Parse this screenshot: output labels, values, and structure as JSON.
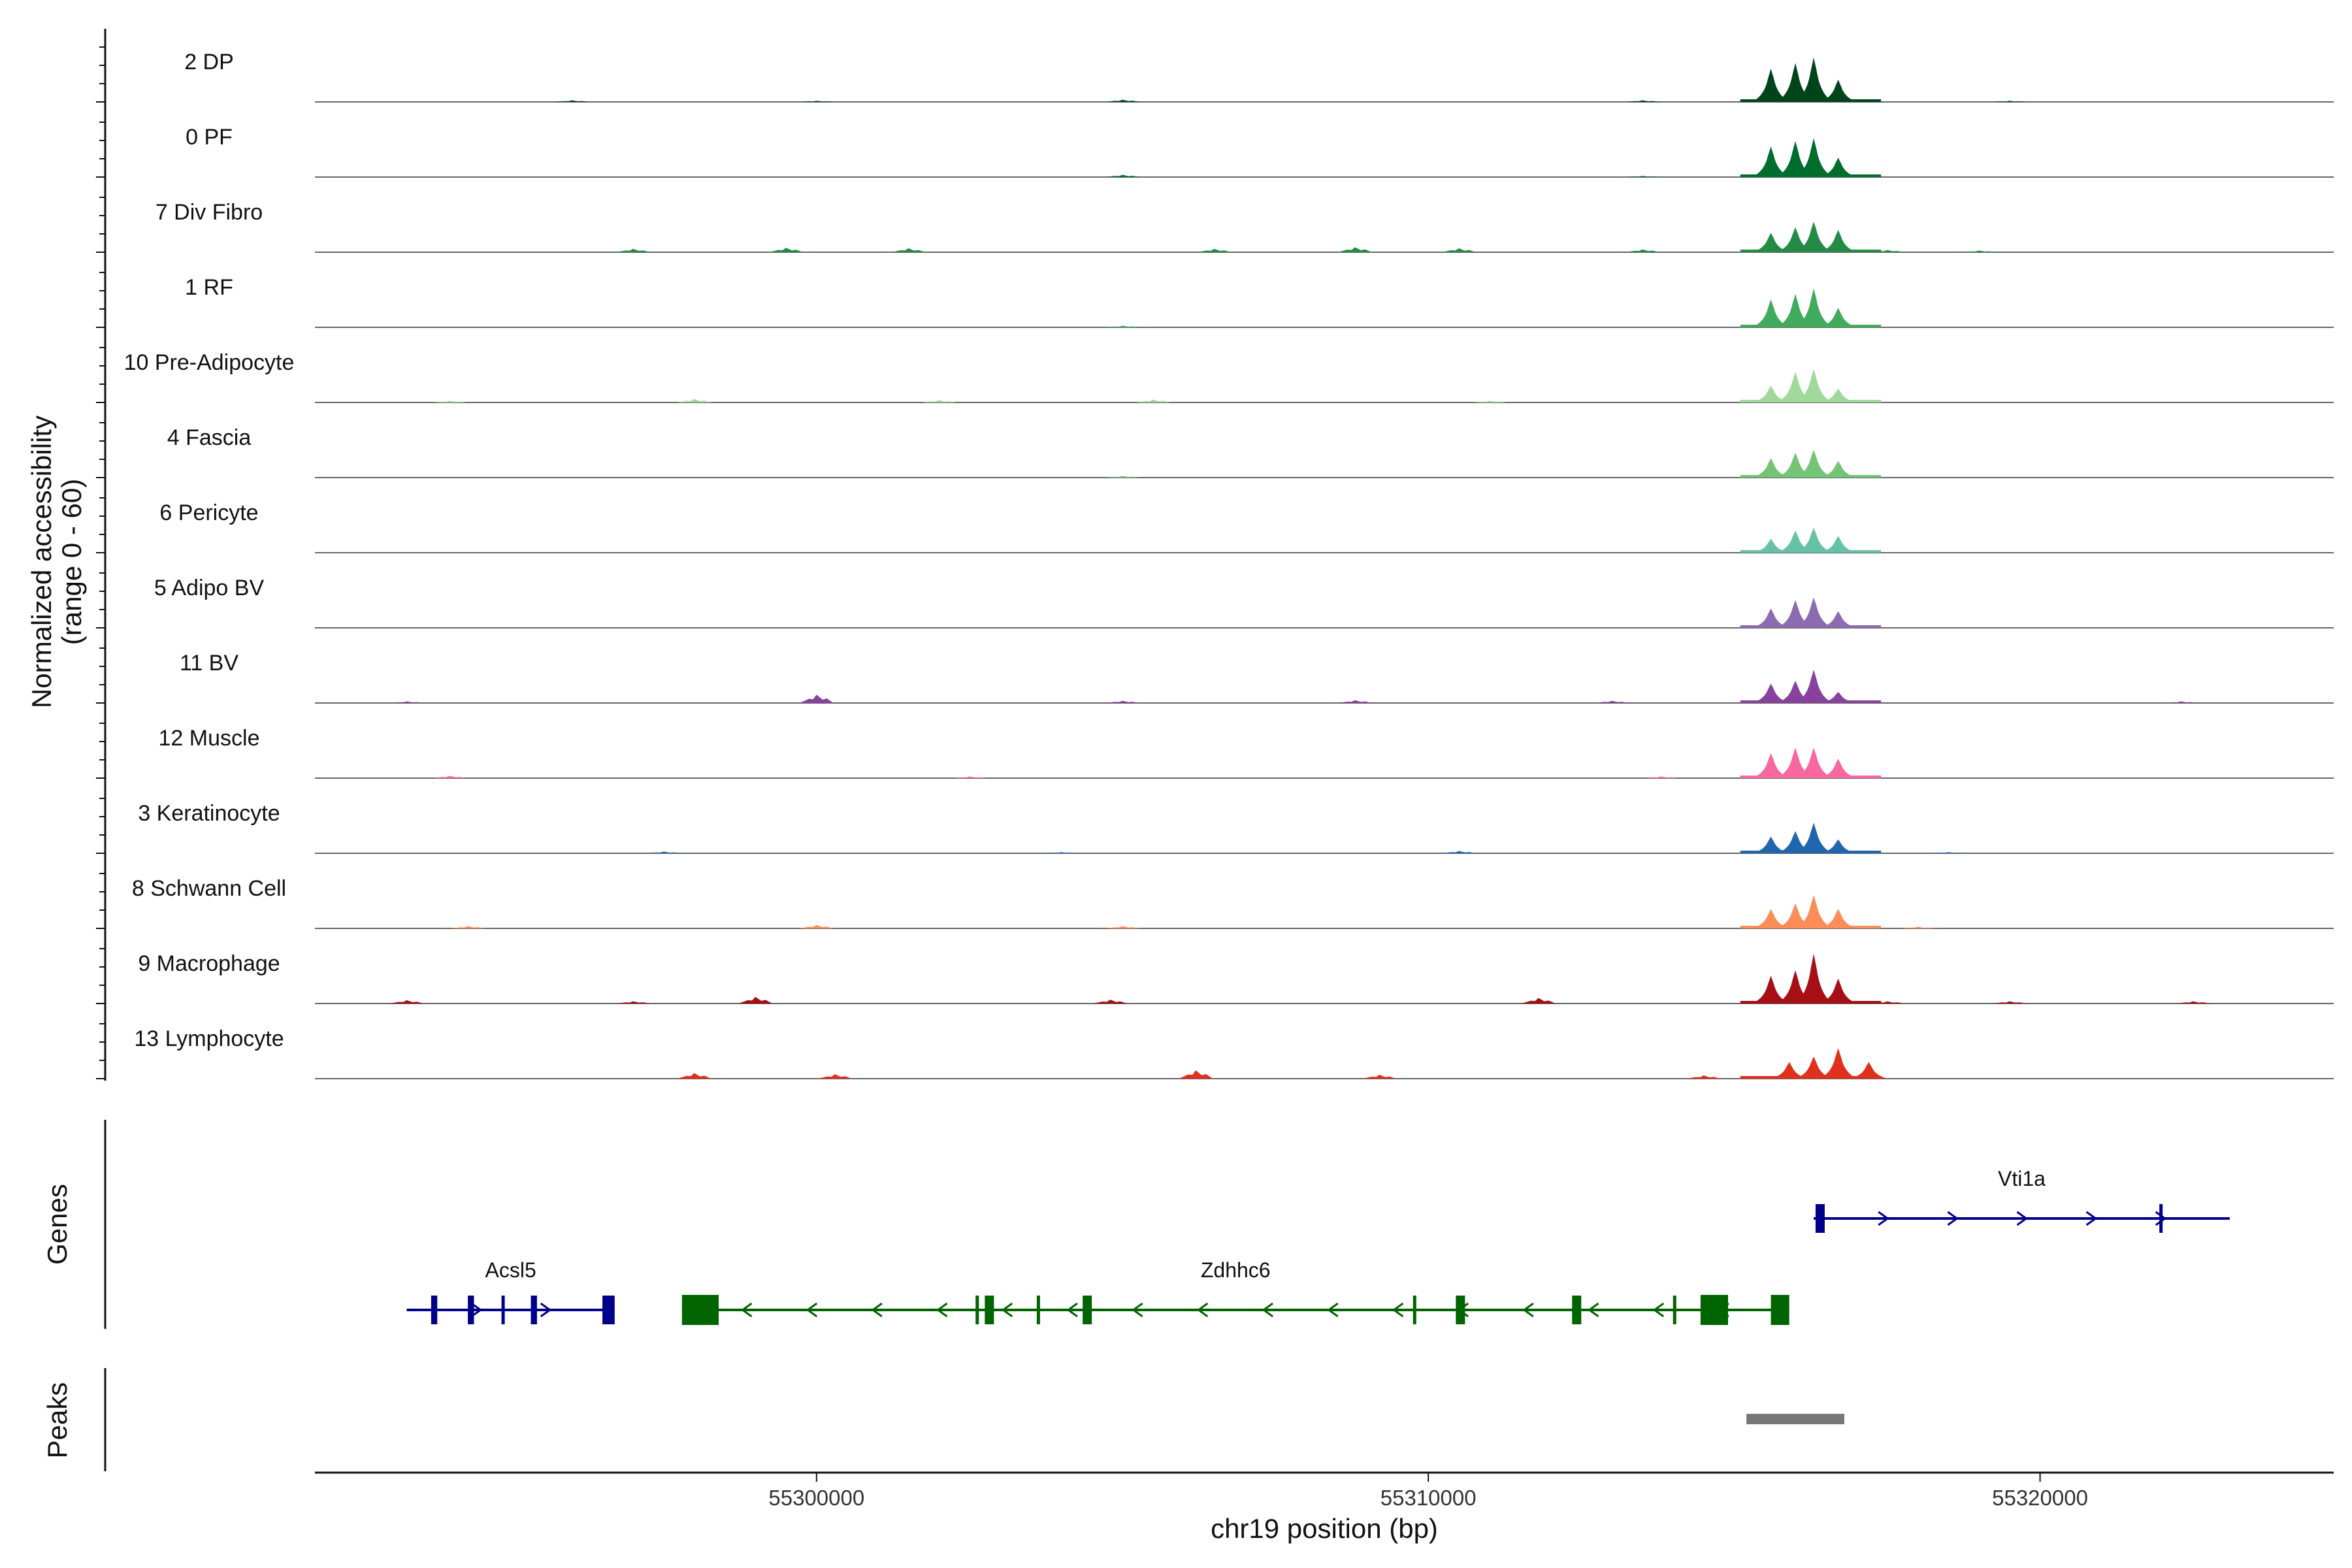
{
  "chart_data": {
    "type": "coverage-track",
    "title": "",
    "ylabel": "Normalized accessibility",
    "ylabel_range": "(range 0 - 60)",
    "y_range": [
      0,
      60
    ],
    "xlabel": "chr19 position (bp)",
    "chromosome": "chr19",
    "xlim": [
      55291800,
      55324800
    ],
    "x_ticks": [
      55300000,
      55310000,
      55320000
    ],
    "x_tick_labels": [
      "55300000",
      "55310000",
      "55320000"
    ],
    "tracks": [
      {
        "name": "2 DP",
        "color": "#00441b",
        "peaks": [
          [
            55315600,
            60
          ],
          [
            55316000,
            70
          ],
          [
            55316300,
            80
          ],
          [
            55316700,
            40
          ]
        ],
        "bg": [
          [
            55296000,
            3
          ],
          [
            55300000,
            2
          ],
          [
            55305000,
            4
          ],
          [
            55313500,
            3
          ],
          [
            55319500,
            2
          ]
        ]
      },
      {
        "name": "0 PF",
        "color": "#006d2c",
        "peaks": [
          [
            55315600,
            55
          ],
          [
            55316000,
            65
          ],
          [
            55316300,
            70
          ],
          [
            55316700,
            35
          ]
        ],
        "bg": [
          [
            55305000,
            4
          ],
          [
            55313500,
            2
          ]
        ]
      },
      {
        "name": "7 Div Fibro",
        "color": "#238b45",
        "peaks": [
          [
            55315600,
            35
          ],
          [
            55316000,
            45
          ],
          [
            55316300,
            55
          ],
          [
            55316700,
            40
          ]
        ],
        "bg": [
          [
            55297000,
            6
          ],
          [
            55299500,
            8
          ],
          [
            55301500,
            7
          ],
          [
            55306500,
            6
          ],
          [
            55308800,
            9
          ],
          [
            55310500,
            7
          ],
          [
            55313500,
            5
          ],
          [
            55317500,
            4
          ],
          [
            55319000,
            3
          ]
        ]
      },
      {
        "name": "1 RF",
        "color": "#41ab5d",
        "peaks": [
          [
            55315600,
            50
          ],
          [
            55316000,
            60
          ],
          [
            55316300,
            70
          ],
          [
            55316700,
            35
          ]
        ],
        "bg": [
          [
            55305000,
            3
          ]
        ]
      },
      {
        "name": "10 Pre-Adipocyte",
        "color": "#a1d99b",
        "peaks": [
          [
            55315600,
            30
          ],
          [
            55316000,
            55
          ],
          [
            55316300,
            60
          ],
          [
            55316700,
            25
          ]
        ],
        "bg": [
          [
            55294000,
            3
          ],
          [
            55298000,
            6
          ],
          [
            55302000,
            4
          ],
          [
            55305500,
            5
          ],
          [
            55311000,
            3
          ]
        ]
      },
      {
        "name": "4 Fascia",
        "color": "#74c476",
        "peaks": [
          [
            55315600,
            35
          ],
          [
            55316000,
            45
          ],
          [
            55316300,
            50
          ],
          [
            55316700,
            30
          ]
        ],
        "bg": [
          [
            55305000,
            3
          ]
        ]
      },
      {
        "name": "6 Pericyte",
        "color": "#66c2a4",
        "peaks": [
          [
            55315600,
            25
          ],
          [
            55316000,
            40
          ],
          [
            55316300,
            45
          ],
          [
            55316700,
            30
          ]
        ],
        "bg": []
      },
      {
        "name": "5 Adipo BV",
        "color": "#8c6bb1",
        "peaks": [
          [
            55315600,
            35
          ],
          [
            55316000,
            50
          ],
          [
            55316300,
            55
          ],
          [
            55316700,
            30
          ]
        ],
        "bg": []
      },
      {
        "name": "11 BV",
        "color": "#88419d",
        "peaks": [
          [
            55315600,
            35
          ],
          [
            55316000,
            40
          ],
          [
            55316300,
            60
          ],
          [
            55316700,
            20
          ]
        ],
        "bg": [
          [
            55293300,
            3
          ],
          [
            55300000,
            15
          ],
          [
            55305000,
            4
          ],
          [
            55308800,
            5
          ],
          [
            55313000,
            4
          ],
          [
            55322300,
            3
          ]
        ]
      },
      {
        "name": "12 Muscle",
        "color": "#f768a1",
        "peaks": [
          [
            55315600,
            45
          ],
          [
            55316000,
            55
          ],
          [
            55316300,
            55
          ],
          [
            55316700,
            35
          ]
        ],
        "bg": [
          [
            55294000,
            4
          ],
          [
            55302500,
            3
          ],
          [
            55313800,
            3
          ],
          [
            55317000,
            3
          ]
        ]
      },
      {
        "name": "3 Keratinocyte",
        "color": "#2166ac",
        "peaks": [
          [
            55315600,
            30
          ],
          [
            55316000,
            40
          ],
          [
            55316300,
            55
          ],
          [
            55316700,
            25
          ]
        ],
        "bg": [
          [
            55297500,
            3
          ],
          [
            55304000,
            2
          ],
          [
            55310500,
            4
          ],
          [
            55318500,
            2
          ]
        ]
      },
      {
        "name": "8 Schwann Cell",
        "color": "#fc8d59",
        "peaks": [
          [
            55315600,
            35
          ],
          [
            55316000,
            45
          ],
          [
            55316300,
            60
          ],
          [
            55316700,
            35
          ]
        ],
        "bg": [
          [
            55294300,
            4
          ],
          [
            55300000,
            6
          ],
          [
            55305000,
            4
          ],
          [
            55318000,
            3
          ]
        ]
      },
      {
        "name": "9 Macrophage",
        "color": "#a50f15",
        "peaks": [
          [
            55315600,
            50
          ],
          [
            55316000,
            60
          ],
          [
            55316300,
            90
          ],
          [
            55316700,
            45
          ]
        ],
        "bg": [
          [
            55293300,
            6
          ],
          [
            55297000,
            4
          ],
          [
            55299000,
            12
          ],
          [
            55304800,
            7
          ],
          [
            55311800,
            10
          ],
          [
            55317500,
            4
          ],
          [
            55319500,
            4
          ],
          [
            55322500,
            4
          ]
        ]
      },
      {
        "name": "13 Lymphocyte",
        "color": "#e0301e",
        "peaks": [
          [
            55315900,
            30
          ],
          [
            55316300,
            40
          ],
          [
            55316700,
            55
          ],
          [
            55317200,
            30
          ]
        ],
        "bg": [
          [
            55298000,
            10
          ],
          [
            55300300,
            8
          ],
          [
            55306200,
            15
          ],
          [
            55309200,
            7
          ],
          [
            55314500,
            6
          ]
        ]
      }
    ],
    "genes": [
      {
        "name": "Acsl5",
        "color": "#00008b",
        "strand": "+",
        "row": 2,
        "start": 55293300,
        "end": 55296700,
        "exons": [
          [
            55293700,
            55293800
          ],
          [
            55294300,
            55294400
          ],
          [
            55294850,
            55294900
          ],
          [
            55295330,
            55295430
          ],
          [
            55296500,
            55296700
          ]
        ]
      },
      {
        "name": "Zdhhc6",
        "color": "#006400",
        "strand": "-",
        "row": 2,
        "start": 55297800,
        "end": 55315900,
        "exons": [
          [
            55297800,
            55298400
          ],
          [
            55302600,
            55302650
          ],
          [
            55302750,
            55302900
          ],
          [
            55303600,
            55303650
          ],
          [
            55304350,
            55304500
          ],
          [
            55309750,
            55309800
          ],
          [
            55310450,
            55310600
          ],
          [
            55312350,
            55312500
          ],
          [
            55314000,
            55314050
          ],
          [
            55314450,
            55314900
          ],
          [
            55315600,
            55315900
          ]
        ]
      },
      {
        "name": "Vti1a",
        "color": "#00008b",
        "strand": "+",
        "row": 1,
        "start": 55316300,
        "end": 55323100,
        "exons": [
          [
            55316330,
            55316480
          ],
          [
            55321950,
            55322000
          ]
        ]
      }
    ],
    "peaks_track": {
      "label": "Peaks",
      "regions": [
        [
          55315200,
          55316800
        ]
      ],
      "color": "#777777"
    },
    "panel_labels": {
      "genes": "Genes",
      "peaks": "Peaks"
    }
  }
}
